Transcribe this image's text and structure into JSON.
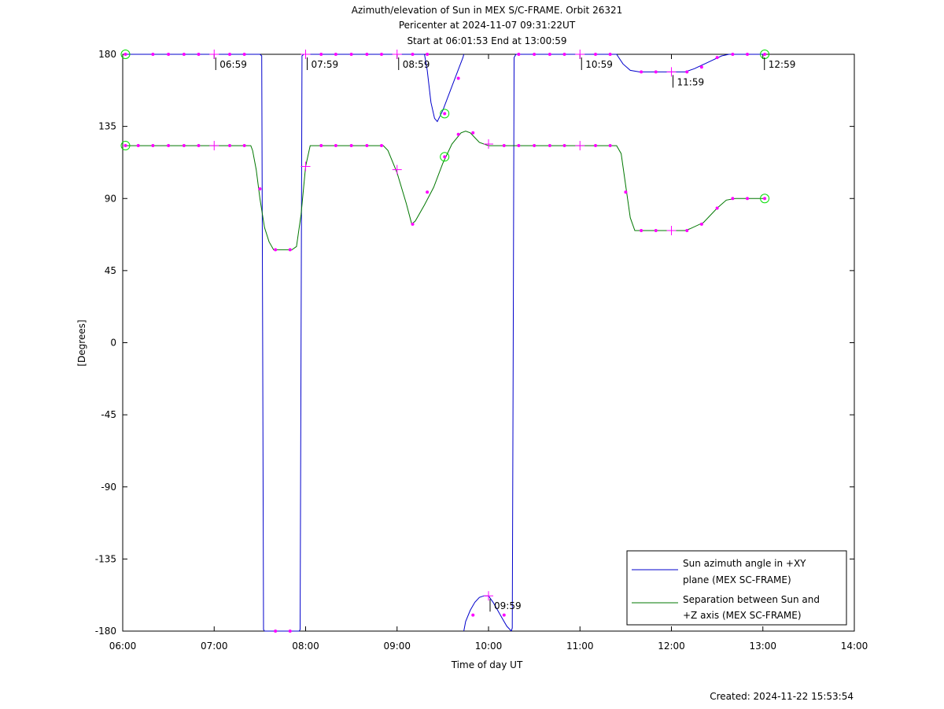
{
  "chart_data": {
    "type": "line",
    "title_lines": [
      "Azimuth/elevation of Sun in MEX S/C-FRAME.  Orbit 26321",
      "Pericenter at 2024-11-07 09:31:22UT",
      "Start at 06:01:53 End at 13:00:59"
    ],
    "xlabel": "Time of day UT",
    "ylabel": "[Degrees]",
    "xlim": [
      6.0,
      14.0
    ],
    "ylim": [
      -180,
      180
    ],
    "x_ticks": [
      {
        "v": 6,
        "label": "06:00"
      },
      {
        "v": 7,
        "label": "07:00"
      },
      {
        "v": 8,
        "label": "08:00"
      },
      {
        "v": 9,
        "label": "09:00"
      },
      {
        "v": 10,
        "label": "10:00"
      },
      {
        "v": 11,
        "label": "11:00"
      },
      {
        "v": 12,
        "label": "12:00"
      },
      {
        "v": 13,
        "label": "13:00"
      },
      {
        "v": 14,
        "label": "14:00"
      }
    ],
    "y_ticks": [
      {
        "v": 180,
        "label": "180"
      },
      {
        "v": 135,
        "label": "135"
      },
      {
        "v": 90,
        "label": "90"
      },
      {
        "v": 45,
        "label": "45"
      },
      {
        "v": 0,
        "label": "0"
      },
      {
        "v": -45,
        "label": "-45"
      },
      {
        "v": -90,
        "label": "-90"
      },
      {
        "v": -135,
        "label": "-135"
      },
      {
        "v": -180,
        "label": "-180"
      }
    ],
    "colors": {
      "azimuth": "#0000cc",
      "separation": "#007700",
      "marker": "#ff00ff",
      "endpoint": "#00dd00"
    },
    "legend_position": "bottom-right",
    "series": [
      {
        "name_lines": [
          "Sun azimuth angle in +XY",
          "plane (MEX SC-FRAME)"
        ],
        "color": "#0000cc",
        "segments": [
          [
            [
              6.03,
              180
            ],
            [
              7.5,
              180
            ],
            [
              7.52,
              179
            ],
            [
              7.53,
              0
            ],
            [
              7.54,
              -179
            ],
            [
              7.55,
              -180
            ]
          ],
          [
            [
              7.55,
              -180
            ],
            [
              7.93,
              -180
            ]
          ],
          [
            [
              7.93,
              -180
            ],
            [
              7.94,
              -179
            ],
            [
              7.95,
              0
            ],
            [
              7.96,
              179
            ],
            [
              7.98,
              180
            ],
            [
              9.3,
              180
            ],
            [
              9.33,
              170
            ],
            [
              9.37,
              150
            ],
            [
              9.41,
              140
            ],
            [
              9.44,
              138
            ],
            [
              9.5,
              145
            ],
            [
              9.6,
              160
            ],
            [
              9.68,
              172
            ],
            [
              9.72,
              178
            ],
            [
              9.73,
              180
            ]
          ],
          [
            [
              9.73,
              -180
            ],
            [
              9.75,
              -174
            ],
            [
              9.8,
              -167
            ],
            [
              9.85,
              -162
            ],
            [
              9.9,
              -159
            ],
            [
              9.95,
              -158
            ],
            [
              10.0,
              -158
            ],
            [
              10.05,
              -162
            ],
            [
              10.1,
              -167
            ],
            [
              10.15,
              -172
            ],
            [
              10.2,
              -177
            ],
            [
              10.25,
              -180
            ]
          ],
          [
            [
              10.25,
              -180
            ],
            [
              10.26,
              -178
            ],
            [
              10.27,
              0
            ],
            [
              10.28,
              178
            ],
            [
              10.3,
              180
            ],
            [
              11.4,
              180
            ],
            [
              11.47,
              174
            ],
            [
              11.55,
              170
            ],
            [
              11.65,
              169
            ],
            [
              12.15,
              169
            ],
            [
              12.25,
              171
            ],
            [
              12.4,
              175
            ],
            [
              12.55,
              179
            ],
            [
              12.63,
              180
            ],
            [
              13.02,
              180
            ]
          ]
        ]
      },
      {
        "name_lines": [
          "Separation between Sun and",
          "+Z axis (MEX SC-FRAME)"
        ],
        "color": "#007700",
        "segments": [
          [
            [
              6.03,
              123
            ],
            [
              7.4,
              123
            ],
            [
              7.42,
              120
            ],
            [
              7.46,
              108
            ],
            [
              7.5,
              90
            ],
            [
              7.55,
              72
            ],
            [
              7.6,
              63
            ],
            [
              7.65,
              58
            ],
            [
              7.85,
              58
            ],
            [
              7.9,
              60
            ],
            [
              7.95,
              80
            ],
            [
              8.0,
              110
            ],
            [
              8.05,
              123
            ],
            [
              8.85,
              123
            ],
            [
              8.9,
              120
            ],
            [
              9.0,
              106
            ],
            [
              9.1,
              87
            ],
            [
              9.16,
              74
            ],
            [
              9.2,
              76
            ],
            [
              9.3,
              86
            ],
            [
              9.4,
              97
            ],
            [
              9.5,
              112
            ],
            [
              9.6,
              124
            ],
            [
              9.7,
              131
            ],
            [
              9.75,
              132
            ],
            [
              9.8,
              131
            ],
            [
              9.85,
              128
            ],
            [
              9.9,
              125
            ],
            [
              10.0,
              123
            ],
            [
              11.4,
              123
            ],
            [
              11.45,
              118
            ],
            [
              11.5,
              98
            ],
            [
              11.55,
              78
            ],
            [
              11.6,
              70
            ],
            [
              11.65,
              70
            ],
            [
              12.15,
              70
            ],
            [
              12.2,
              71
            ],
            [
              12.35,
              75
            ],
            [
              12.5,
              84
            ],
            [
              12.6,
              89
            ],
            [
              12.7,
              90
            ],
            [
              13.02,
              90
            ]
          ]
        ]
      }
    ],
    "time_labels": [
      {
        "x": 7.0,
        "y": 180,
        "label": "06:59"
      },
      {
        "x": 8.0,
        "y": 180,
        "label": "07:59"
      },
      {
        "x": 9.0,
        "y": 180,
        "label": "08:59"
      },
      {
        "x": 10.0,
        "y": -158,
        "label": "09:59"
      },
      {
        "x": 11.0,
        "y": 180,
        "label": "10:59"
      },
      {
        "x": 12.0,
        "y": 169,
        "label": "11:59"
      },
      {
        "x": 13.0,
        "y": 180,
        "label": "12:59"
      }
    ],
    "dots": [
      [
        6.33,
        180
      ],
      [
        6.5,
        180
      ],
      [
        6.67,
        180
      ],
      [
        6.83,
        180
      ],
      [
        7.17,
        180
      ],
      [
        7.33,
        180
      ],
      [
        7.67,
        -180
      ],
      [
        7.83,
        -180
      ],
      [
        8.17,
        180
      ],
      [
        8.33,
        180
      ],
      [
        8.5,
        180
      ],
      [
        8.67,
        180
      ],
      [
        8.83,
        180
      ],
      [
        9.17,
        180
      ],
      [
        9.33,
        180
      ],
      [
        9.67,
        165
      ],
      [
        9.83,
        -170
      ],
      [
        10.17,
        -170
      ],
      [
        10.33,
        180
      ],
      [
        10.5,
        180
      ],
      [
        10.67,
        180
      ],
      [
        10.83,
        180
      ],
      [
        11.17,
        180
      ],
      [
        11.33,
        180
      ],
      [
        11.67,
        169
      ],
      [
        11.83,
        169
      ],
      [
        12.17,
        169
      ],
      [
        12.33,
        172
      ],
      [
        12.5,
        178
      ],
      [
        12.67,
        180
      ],
      [
        12.83,
        180
      ],
      [
        6.17,
        123
      ],
      [
        6.33,
        123
      ],
      [
        6.5,
        123
      ],
      [
        6.67,
        123
      ],
      [
        6.83,
        123
      ],
      [
        7.17,
        123
      ],
      [
        7.33,
        123
      ],
      [
        7.5,
        96
      ],
      [
        7.67,
        58
      ],
      [
        7.83,
        58
      ],
      [
        8.17,
        123
      ],
      [
        8.33,
        123
      ],
      [
        8.5,
        123
      ],
      [
        8.67,
        123
      ],
      [
        8.83,
        123
      ],
      [
        9.17,
        74
      ],
      [
        9.33,
        94
      ],
      [
        9.67,
        130
      ],
      [
        9.83,
        131
      ],
      [
        10.17,
        123
      ],
      [
        10.33,
        123
      ],
      [
        10.5,
        123
      ],
      [
        10.67,
        123
      ],
      [
        10.83,
        123
      ],
      [
        11.17,
        123
      ],
      [
        11.33,
        123
      ],
      [
        11.5,
        94
      ],
      [
        11.67,
        70
      ],
      [
        11.83,
        70
      ],
      [
        12.17,
        70
      ],
      [
        12.33,
        74
      ],
      [
        12.5,
        84
      ],
      [
        12.67,
        90
      ],
      [
        12.83,
        90
      ]
    ],
    "crosses": [
      [
        7.0,
        180
      ],
      [
        8.0,
        180
      ],
      [
        9.0,
        180
      ],
      [
        10.0,
        -158
      ],
      [
        11.0,
        180
      ],
      [
        12.0,
        169
      ],
      [
        7.0,
        123
      ],
      [
        8.0,
        110
      ],
      [
        9.0,
        108
      ],
      [
        10.0,
        124
      ],
      [
        11.0,
        123
      ],
      [
        12.0,
        70
      ]
    ],
    "circles": [
      [
        6.03,
        180
      ],
      [
        13.02,
        180
      ],
      [
        6.03,
        123
      ],
      [
        13.02,
        90
      ],
      [
        9.52,
        143
      ],
      [
        9.52,
        116
      ]
    ]
  },
  "footer": {
    "created": "Created: 2024-11-22 15:53:54"
  }
}
